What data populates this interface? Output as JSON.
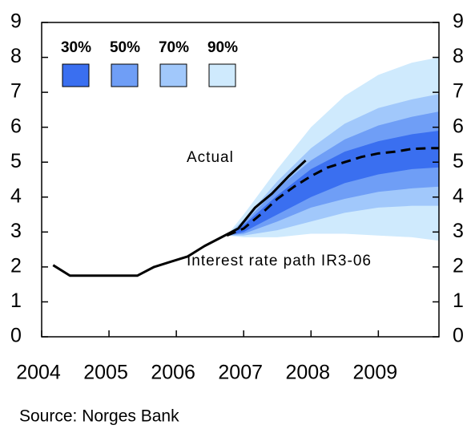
{
  "chart_data": {
    "type": "fan",
    "source": "Source: Norges Bank",
    "xlim": [
      2004,
      2009.9
    ],
    "xticks": [
      2004,
      2005,
      2006,
      2007,
      2008,
      2009
    ],
    "ylim": [
      0,
      9
    ],
    "yticks": [
      0,
      1,
      2,
      3,
      4,
      5,
      6,
      7,
      8,
      9
    ],
    "band_x": [
      2006.75,
      2007,
      2007.5,
      2008,
      2008.5,
      2009,
      2009.5,
      2009.9
    ],
    "bands": [
      {
        "name": "90%",
        "color": "#cfeafd",
        "lower": [
          2.9,
          2.85,
          2.85,
          2.95,
          2.95,
          2.9,
          2.85,
          2.75
        ],
        "upper": [
          2.9,
          3.5,
          4.8,
          6.0,
          6.9,
          7.5,
          7.85,
          8.0
        ]
      },
      {
        "name": "70%",
        "color": "#a1c8fb",
        "lower": [
          2.9,
          2.9,
          3.05,
          3.3,
          3.55,
          3.7,
          3.75,
          3.75
        ],
        "upper": [
          2.9,
          3.35,
          4.45,
          5.4,
          6.1,
          6.55,
          6.8,
          6.95
        ]
      },
      {
        "name": "50%",
        "color": "#6f9ef6",
        "lower": [
          2.9,
          2.95,
          3.3,
          3.7,
          3.95,
          4.15,
          4.25,
          4.3
        ],
        "upper": [
          2.9,
          3.25,
          4.25,
          5.05,
          5.65,
          6.05,
          6.3,
          6.45
        ]
      },
      {
        "name": "30%",
        "color": "#3a6ff0",
        "lower": [
          2.9,
          3.0,
          3.5,
          4.0,
          4.4,
          4.65,
          4.8,
          4.85
        ],
        "upper": [
          2.9,
          3.2,
          4.05,
          4.8,
          5.3,
          5.6,
          5.8,
          5.9
        ]
      }
    ],
    "series": [
      {
        "name": "Actual",
        "color": "#000000",
        "style": "solid",
        "x": [
          2004.17,
          2004.42,
          2004.67,
          2004.92,
          2005.17,
          2005.42,
          2005.67,
          2005.92,
          2006.17,
          2006.42,
          2006.67,
          2006.92,
          2007.17,
          2007.42,
          2007.67,
          2007.92
        ],
        "values": [
          2.05,
          1.75,
          1.75,
          1.75,
          1.75,
          1.75,
          2.0,
          2.15,
          2.3,
          2.6,
          2.85,
          3.1,
          3.7,
          4.1,
          4.6,
          5.05
        ]
      },
      {
        "name": "Interest rate path IR3-06",
        "color": "#000000",
        "style": "dashed",
        "x": [
          2006.75,
          2007,
          2007.25,
          2007.5,
          2007.75,
          2008,
          2008.25,
          2008.5,
          2008.75,
          2009,
          2009.25,
          2009.5,
          2009.75,
          2009.9
        ],
        "values": [
          2.9,
          3.1,
          3.5,
          3.95,
          4.3,
          4.6,
          4.85,
          5.0,
          5.15,
          5.25,
          5.3,
          5.38,
          5.4,
          5.4
        ]
      }
    ]
  }
}
